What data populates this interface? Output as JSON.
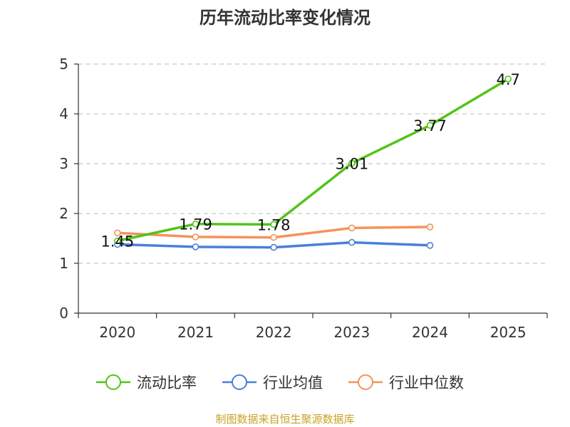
{
  "chart_data": {
    "type": "line",
    "title": "历年流动比率变化情况",
    "categories": [
      "2020",
      "2021",
      "2022",
      "2023",
      "2024",
      "2025"
    ],
    "ylim": [
      0,
      5
    ],
    "yticks": [
      "0",
      "1",
      "2",
      "3",
      "4",
      "5"
    ],
    "grid": true,
    "legend_position": "bottom",
    "series": [
      {
        "name": "流动比率",
        "color": "#52C41A",
        "values": [
          1.45,
          1.79,
          1.78,
          3.01,
          3.77,
          4.7
        ],
        "labels": [
          "1.45",
          "1.79",
          "1.78",
          "3.01",
          "3.77",
          "4.7"
        ]
      },
      {
        "name": "行业均值",
        "color": "#4A7FDB",
        "values": [
          1.38,
          1.33,
          1.32,
          1.42,
          1.36,
          null
        ],
        "labels": []
      },
      {
        "name": "行业中位数",
        "color": "#F4935A",
        "values": [
          1.61,
          1.53,
          1.52,
          1.71,
          1.73,
          null
        ],
        "labels": []
      }
    ],
    "source": "制图数据来自恒生聚源数据库"
  }
}
